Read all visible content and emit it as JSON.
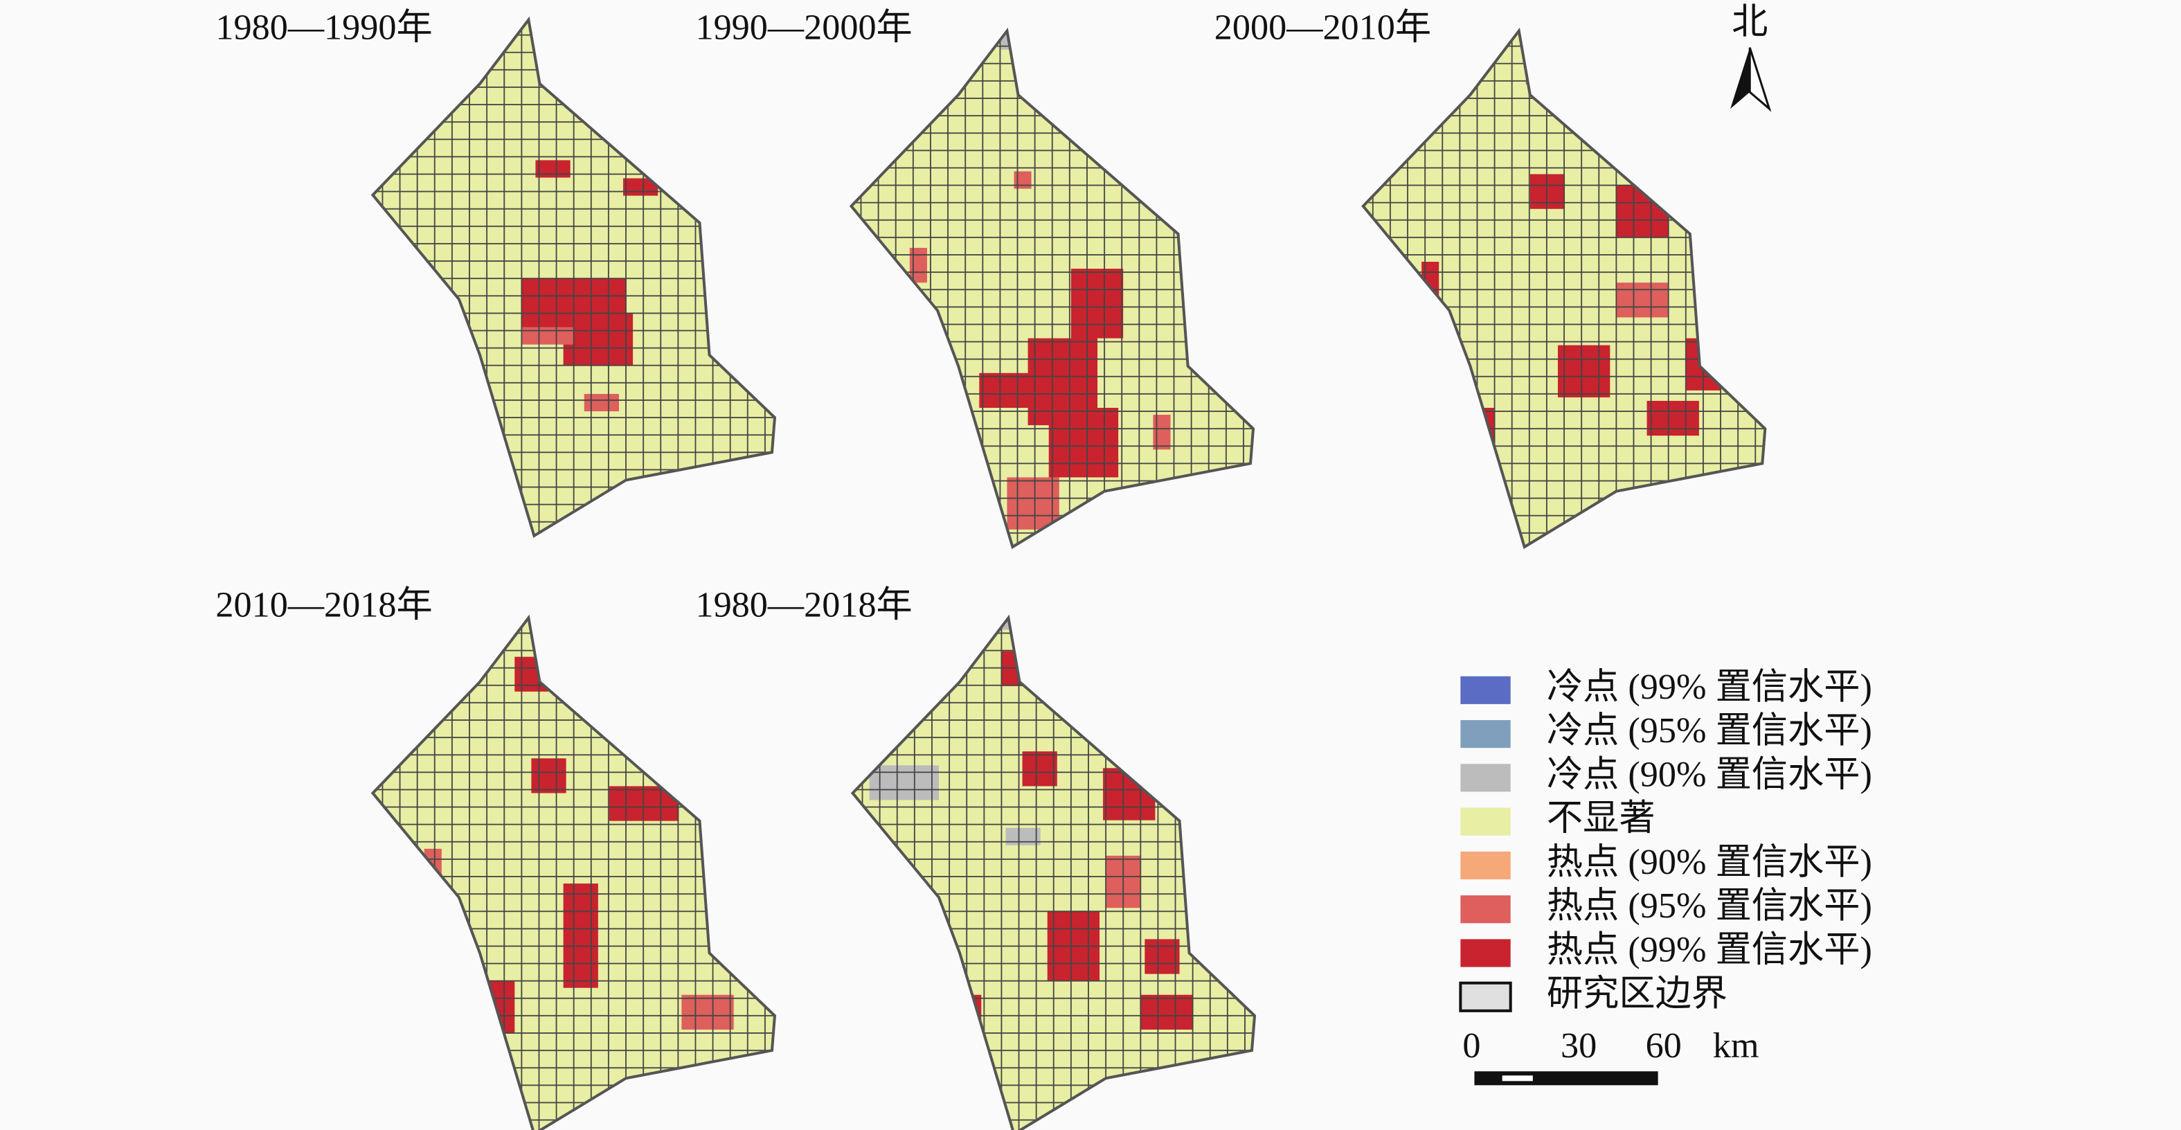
{
  "panels": [
    {
      "title": "1980—1990年"
    },
    {
      "title": "1990—2000年"
    },
    {
      "title": "2000—2010年"
    },
    {
      "title": "2010—2018年"
    },
    {
      "title": "1980—2018年"
    }
  ],
  "north": "北",
  "legend": {
    "items": [
      {
        "label": "冷点 (99% 置信水平)",
        "color": "#5a6cc4"
      },
      {
        "label": "冷点 (95% 置信水平)",
        "color": "#7f9fbd"
      },
      {
        "label": "冷点 (90% 置信水平)",
        "color": "#bcbcbc"
      },
      {
        "label": "不显著",
        "color": "#e8eea4"
      },
      {
        "label": "热点 (90% 置信水平)",
        "color": "#f5a878"
      },
      {
        "label": "热点 (95% 置信水平)",
        "color": "#de5f5c"
      },
      {
        "label": "热点 (99% 置信水平)",
        "color": "#c8232e"
      },
      {
        "label": "研究区边界",
        "color": "#e0e0e0"
      }
    ]
  },
  "scale": {
    "ticks": [
      0,
      30,
      60
    ],
    "unit": "km"
  }
}
